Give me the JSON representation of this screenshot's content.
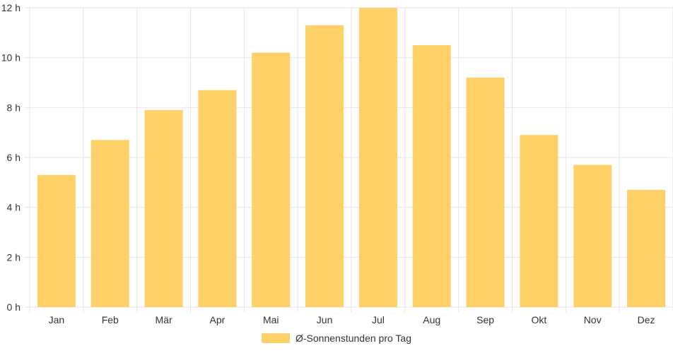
{
  "chart_data": {
    "type": "bar",
    "categories": [
      "Jan",
      "Feb",
      "Mär",
      "Apr",
      "Mai",
      "Jun",
      "Jul",
      "Aug",
      "Sep",
      "Okt",
      "Nov",
      "Dez"
    ],
    "series": [
      {
        "name": "Ø-Sonnenstunden pro Tag",
        "values": [
          5.3,
          6.7,
          7.9,
          8.7,
          10.2,
          11.3,
          12.0,
          10.5,
          9.2,
          6.9,
          5.7,
          4.7
        ],
        "color": "#fdd068"
      }
    ],
    "y_ticks": [
      "0 h",
      "2 h",
      "4 h",
      "6 h",
      "8 h",
      "10 h",
      "12 h"
    ],
    "ylim": [
      0,
      12
    ],
    "grid": true,
    "legend_position": "bottom"
  },
  "colors": {
    "bar": "#fdd068",
    "grid": "#e6e6e6",
    "text": "#333333"
  }
}
